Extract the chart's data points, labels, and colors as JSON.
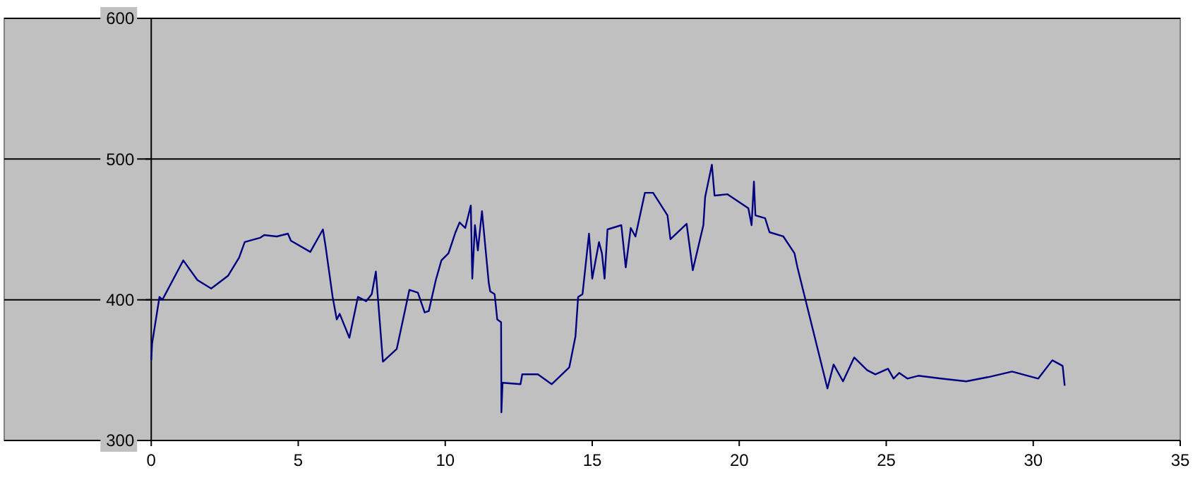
{
  "chart_data": {
    "type": "line",
    "xlim": [
      -5,
      35
    ],
    "xticks": [
      0,
      5,
      10,
      15,
      20,
      25,
      30,
      35
    ],
    "ylim": [
      300,
      600
    ],
    "yticks": [
      300,
      400,
      500,
      600
    ],
    "grid": "y",
    "marker": "none",
    "line_style": "solid",
    "series": [
      {
        "color": "#000080",
        "x": [
          0,
          0.03,
          0.28,
          0.38,
          1.09,
          1.57,
          2.04,
          2.61,
          2.99,
          3.18,
          3.7,
          3.84,
          4.27,
          4.65,
          4.75,
          5.41,
          5.84,
          5.93,
          6.17,
          6.31,
          6.41,
          6.74,
          7.03,
          7.31,
          7.5,
          7.64,
          7.88,
          8.35,
          8.78,
          9.07,
          9.3,
          9.44,
          9.68,
          9.87,
          10.11,
          10.35,
          10.49,
          10.68,
          10.87,
          10.92,
          11.01,
          11.11,
          11.25,
          11.48,
          11.53,
          11.68,
          11.77,
          11.9,
          11.91,
          11.95,
          12.56,
          12.62,
          13.15,
          13.62,
          14.22,
          14.43,
          14.52,
          14.67,
          14.89,
          15,
          15.23,
          15.33,
          15.42,
          15.52,
          15.99,
          16.14,
          16.31,
          16.47,
          16.79,
          17.07,
          17.56,
          17.66,
          18.21,
          18.42,
          18.78,
          18.84,
          19.07,
          19.16,
          19.6,
          20.31,
          20.42,
          20.5,
          20.55,
          20.88,
          21.03,
          21.5,
          21.88,
          21.98,
          23,
          23.21,
          23.53,
          23.91,
          24.35,
          24.63,
          25.06,
          25.25,
          25.44,
          25.72,
          26.09,
          26.86,
          27.72,
          28.46,
          29.28,
          30.17,
          30.65,
          31,
          31.07
        ],
        "values": [
          357,
          369,
          402,
          400,
          428,
          414,
          408,
          417,
          430,
          441,
          444,
          446,
          445,
          447,
          442,
          434,
          450,
          438,
          402,
          386,
          390,
          373,
          402,
          399,
          404,
          420,
          356,
          365,
          407,
          405,
          391,
          392,
          414,
          428,
          433,
          448,
          455,
          451,
          467,
          415,
          453,
          435,
          463,
          412,
          406,
          404,
          386,
          384,
          320,
          341,
          340,
          347,
          347,
          340,
          352,
          374,
          402,
          404,
          447,
          415,
          441,
          433,
          415,
          450,
          453,
          423,
          451,
          445,
          476,
          476,
          460,
          443,
          454,
          421,
          453,
          473,
          496,
          474,
          475,
          465,
          453,
          484,
          460,
          458,
          448,
          445,
          433,
          423,
          337,
          354,
          342,
          359,
          350,
          347,
          351,
          344,
          348,
          344,
          346,
          344,
          342,
          345,
          349,
          344,
          357,
          353,
          339
        ]
      }
    ]
  }
}
